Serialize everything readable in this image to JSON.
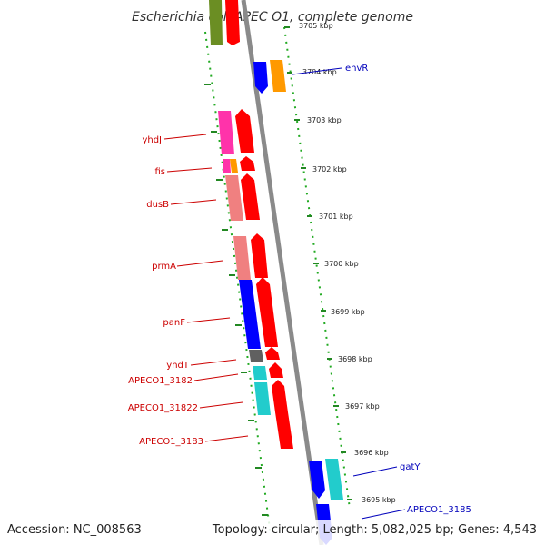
{
  "title": "Escherichia coli APEC O1, complete genome",
  "footer": {
    "accession": "Accession: NC_008563",
    "summary": "Topology: circular; Length: 5,082,025 bp; Genes: 4,543"
  },
  "ticks": [
    "3705 kbp",
    "3704 kbp",
    "3703 kbp",
    "3702 kbp",
    "3701 kbp",
    "3700 kbp",
    "3699 kbp",
    "3698 kbp",
    "3697 kbp",
    "3696 kbp",
    "3695 kbp"
  ],
  "genes_left": [
    "yhdJ",
    "fis",
    "dusB",
    "prmA",
    "panF",
    "yhdT",
    "APECO1_3182",
    "APECO1_31822",
    "APECO1_3183"
  ],
  "genes_right": [
    "envR",
    "gatY",
    "APECO1_3185"
  ],
  "colors": {
    "accent_red": "#cc0000",
    "accent_blue": "#0000bb",
    "tick_green": "#228822",
    "gene_red": "#ff0000",
    "gene_blue": "#0000ff",
    "gene_cyan": "#22cccc",
    "gene_pink": "#ff33aa",
    "gene_salmon": "#f08080",
    "gene_orange": "#ff9900",
    "gene_olive": "#6b8e23",
    "gene_gray": "#606060"
  }
}
